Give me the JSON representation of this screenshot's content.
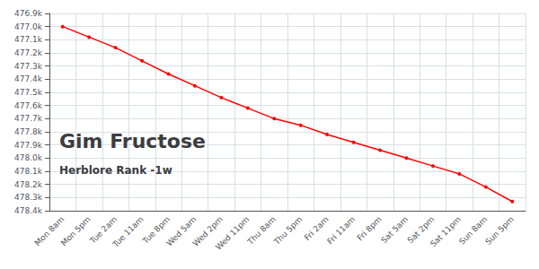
{
  "chart_data": {
    "type": "line",
    "title": "Gim Fructose",
    "subtitle": "Herblore Rank -1w",
    "categories": [
      "Mon 8am",
      "Mon 5pm",
      "Tue 2am",
      "Tue 11am",
      "Tue 8pm",
      "Wed 5am",
      "Wed 2pm",
      "Wed 11pm",
      "Thu 8am",
      "Thu 5pm",
      "Fri 2am",
      "Fri 11am",
      "Fri 8pm",
      "Sat 5am",
      "Sat 2pm",
      "Sat 11pm",
      "Sun 8am",
      "Sun 5pm"
    ],
    "values": [
      477000,
      477080,
      477160,
      477260,
      477360,
      477450,
      477540,
      477620,
      477700,
      477750,
      477820,
      477880,
      477940,
      478000,
      478060,
      478120,
      478220,
      478330
    ],
    "color": "#ff0000",
    "marker": "circle",
    "ylim": [
      478400,
      476900
    ],
    "yticks": [
      {
        "value": 476900,
        "label": "476.9k"
      },
      {
        "value": 477000,
        "label": "477.0k"
      },
      {
        "value": 477100,
        "label": "477.1k"
      },
      {
        "value": 477200,
        "label": "477.2k"
      },
      {
        "value": 477300,
        "label": "477.3k"
      },
      {
        "value": 477400,
        "label": "477.4k"
      },
      {
        "value": 477500,
        "label": "477.5k"
      },
      {
        "value": 477600,
        "label": "477.6k"
      },
      {
        "value": 477700,
        "label": "477.7k"
      },
      {
        "value": 477800,
        "label": "477.8k"
      },
      {
        "value": 477900,
        "label": "477.9k"
      },
      {
        "value": 478000,
        "label": "478.0k"
      },
      {
        "value": 478100,
        "label": "478.1k"
      },
      {
        "value": 478200,
        "label": "478.2k"
      },
      {
        "value": 478300,
        "label": "478.3k"
      },
      {
        "value": 478400,
        "label": "478.4k"
      }
    ],
    "grid": true
  }
}
